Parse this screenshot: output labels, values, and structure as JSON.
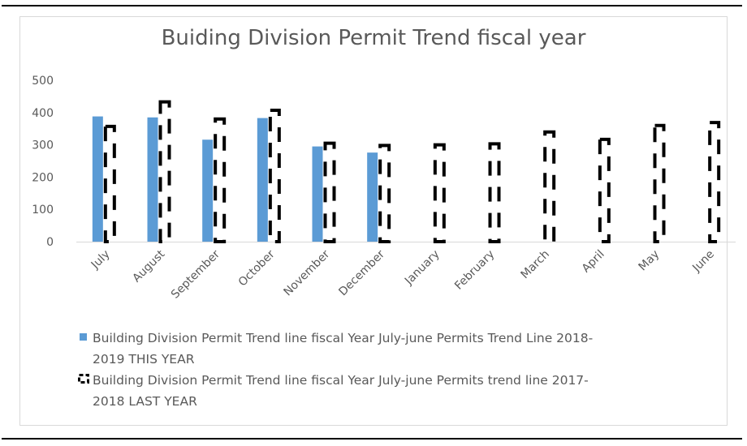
{
  "chart_data": {
    "type": "bar",
    "title": "Buiding Division Permit Trend fiscal year",
    "categories": [
      "July",
      "August",
      "September",
      "October",
      "November",
      "December",
      "January",
      "February",
      "March",
      "April",
      "May",
      "June"
    ],
    "ylim": [
      0,
      500
    ],
    "yticks": [
      0,
      100,
      200,
      300,
      400,
      500
    ],
    "grid": false,
    "legend_position": "bottom",
    "series": [
      {
        "name": "Building Division Permit Trend line fiscal Year July-june Permits Trend Line 2018-2019 THIS YEAR",
        "values": [
          388,
          385,
          316,
          383,
          295,
          276,
          null,
          null,
          null,
          null,
          null,
          null
        ],
        "color": "#5b9bd5",
        "style": "solid"
      },
      {
        "name": "Building Division Permit Trend line fiscal Year July-june Permits trend line 2017-2018 LAST YEAR",
        "values": [
          362,
          438,
          385,
          412,
          310,
          303,
          305,
          308,
          345,
          322,
          365,
          374
        ],
        "color": "#000000",
        "style": "dashed-outline"
      }
    ]
  },
  "legend": {
    "this_year_line1": "Building Division Permit Trend line fiscal Year July-june Permits Trend Line 2018-",
    "this_year_line2": "2019 THIS YEAR",
    "last_year_line1": "Building Division Permit Trend line fiscal Year July-june Permits trend line 2017-",
    "last_year_line2": "2018 LAST YEAR"
  }
}
